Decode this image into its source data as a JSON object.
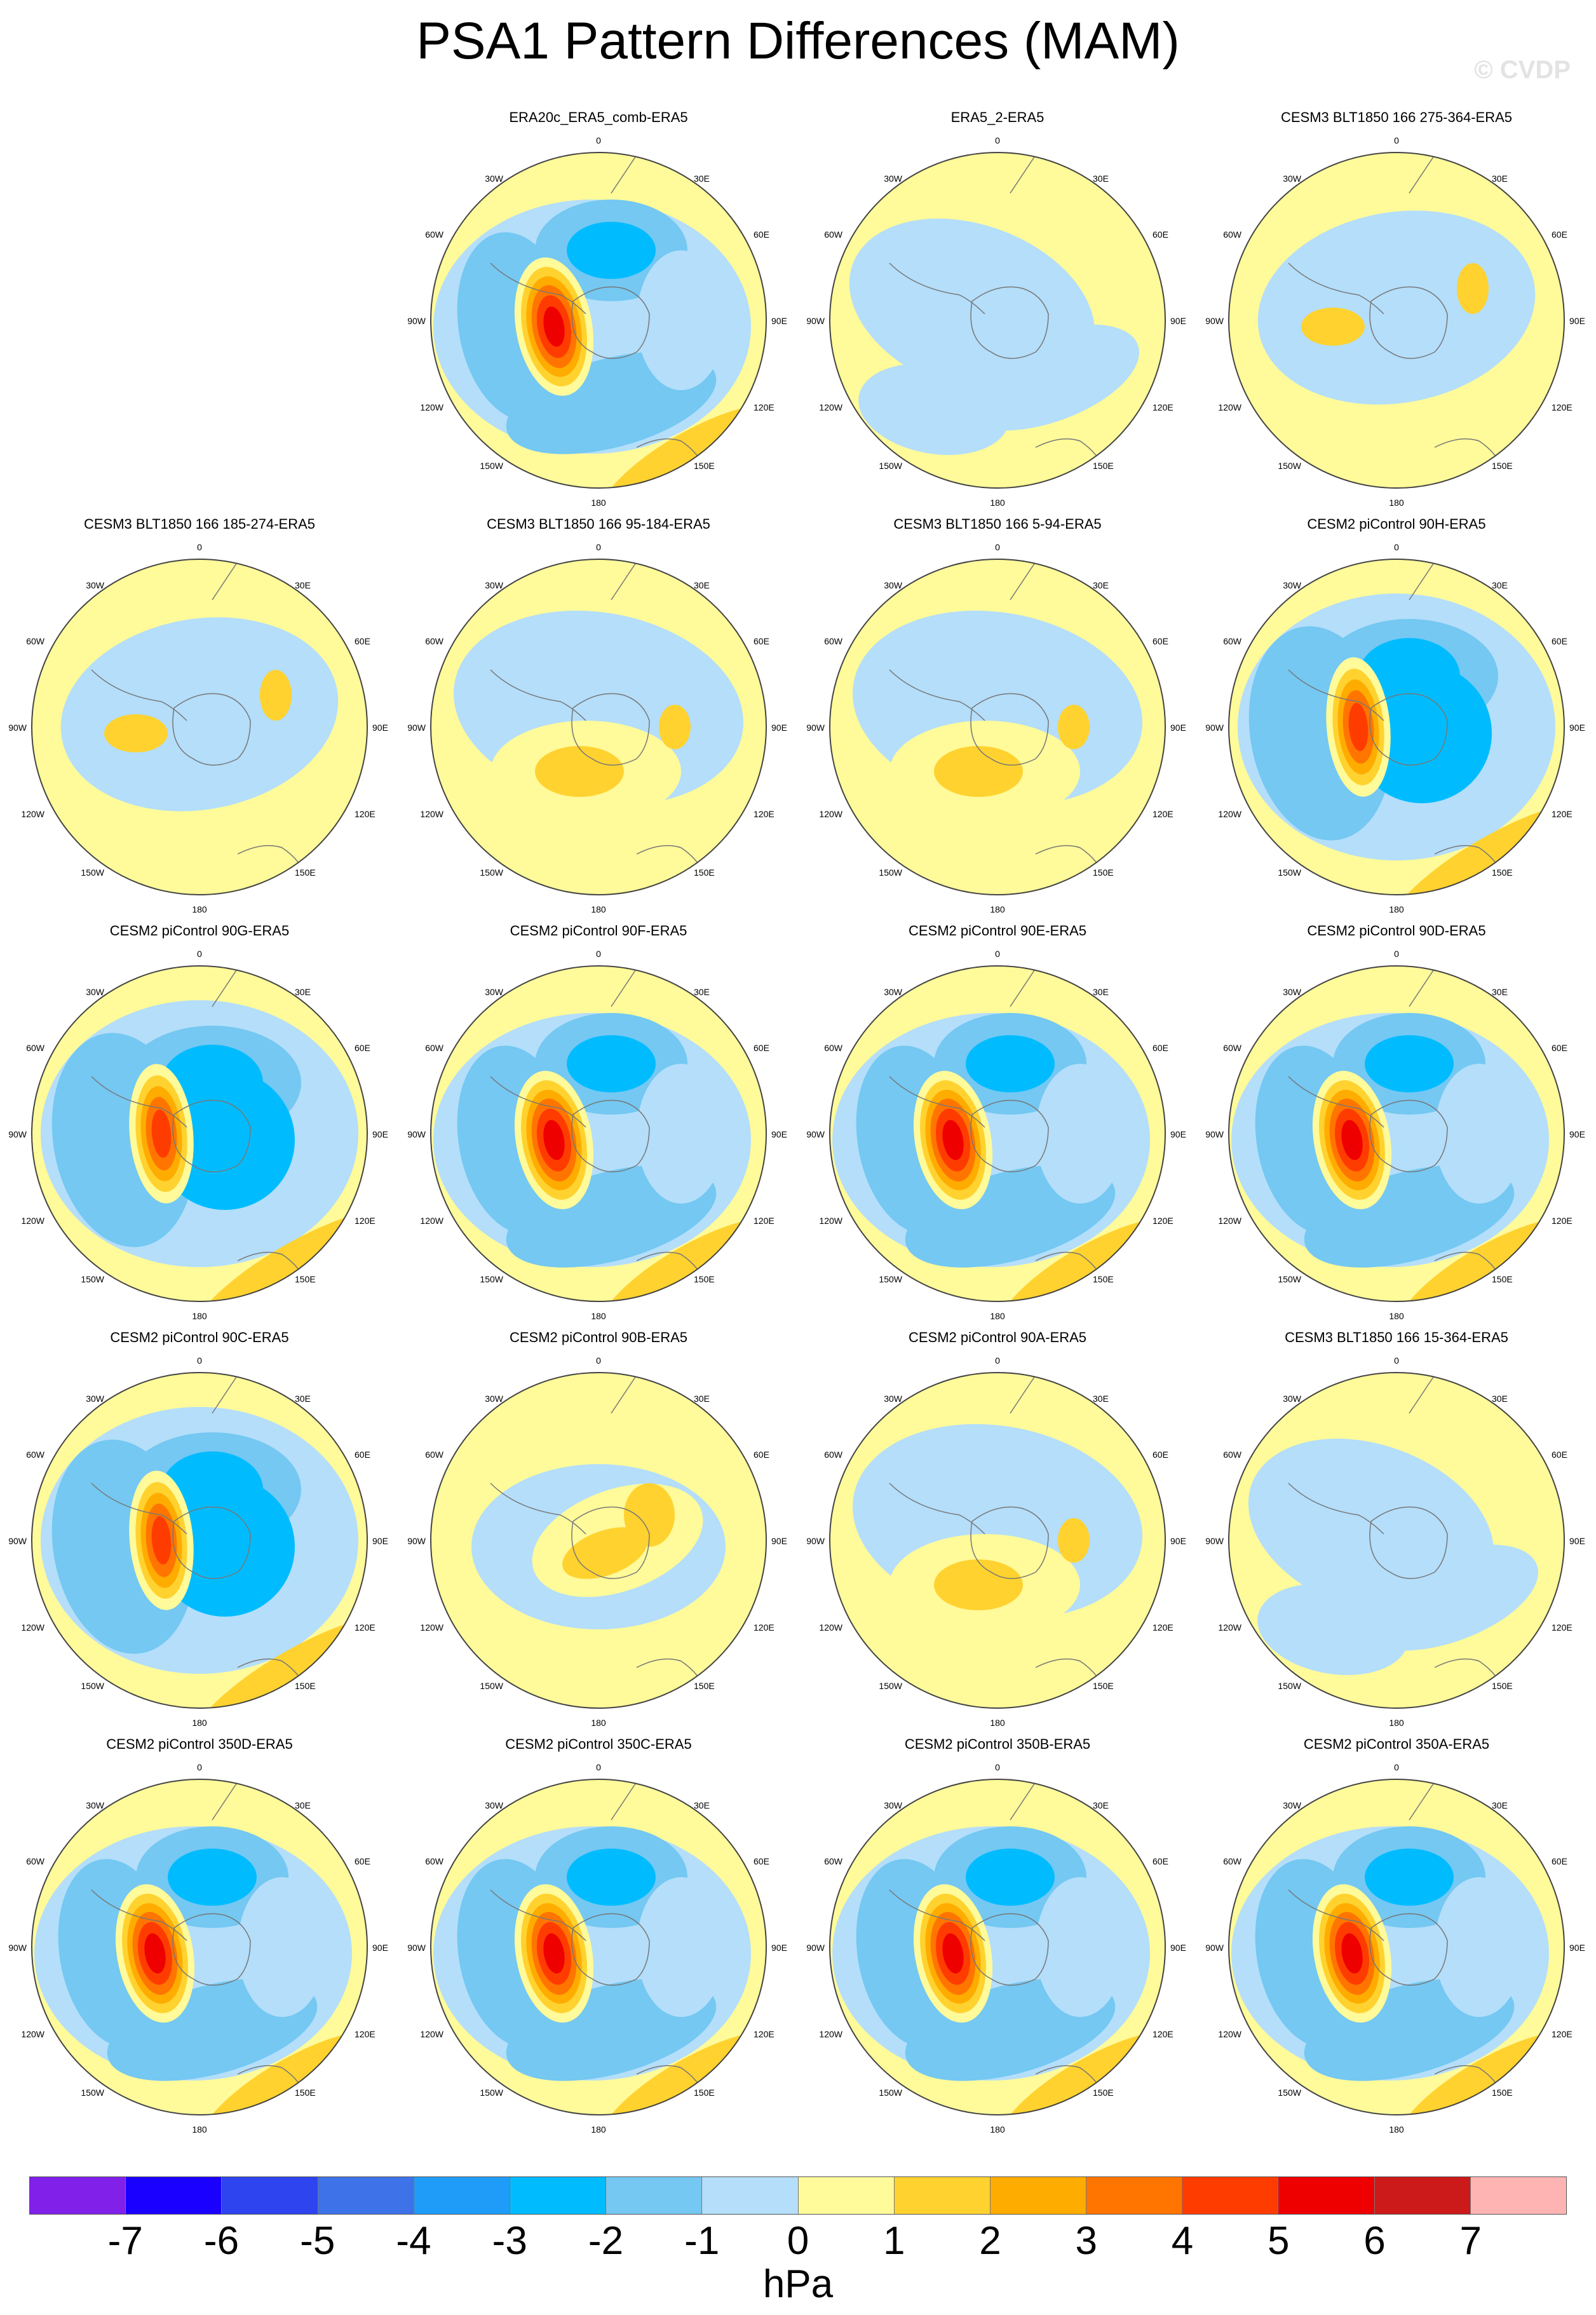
{
  "header": {
    "title": "PSA1 Pattern Differences (MAM)",
    "watermark": "© CVDP"
  },
  "map_labels": {
    "top": "0",
    "bottom": "180",
    "left_upper": "30W",
    "left_mid_upper": "60W",
    "left_mid": "90W",
    "left_mid_lower": "120W",
    "left_lower": "150W",
    "right_upper": "30E",
    "right_mid_upper": "60E",
    "right_mid": "90E",
    "right_mid_lower": "120E",
    "right_lower": "150E"
  },
  "colors": {
    "ocean_base": "#fffa9a",
    "land_outline": "#666666"
  },
  "panels": [
    {
      "title": "ERA20c_ERA5_comb-ERA5",
      "row": 0,
      "col": 1,
      "pattern": "strong_a"
    },
    {
      "title": "ERA5_2-ERA5",
      "row": 0,
      "col": 2,
      "pattern": "weak_a"
    },
    {
      "title": "CESM3 BLT1850 166 275-364-ERA5",
      "row": 0,
      "col": 3,
      "pattern": "weak_b"
    },
    {
      "title": "CESM3 BLT1850 166 185-274-ERA5",
      "row": 1,
      "col": 0,
      "pattern": "weak_b"
    },
    {
      "title": "CESM3 BLT1850 166 95-184-ERA5",
      "row": 1,
      "col": 1,
      "pattern": "weak_c"
    },
    {
      "title": "CESM3 BLT1850 166 5-94-ERA5",
      "row": 1,
      "col": 2,
      "pattern": "weak_c"
    },
    {
      "title": "CESM2 piControl 90H-ERA5",
      "row": 1,
      "col": 3,
      "pattern": "strong_b"
    },
    {
      "title": "CESM2 piControl 90G-ERA5",
      "row": 2,
      "col": 0,
      "pattern": "strong_b"
    },
    {
      "title": "CESM2 piControl 90F-ERA5",
      "row": 2,
      "col": 1,
      "pattern": "strong_a"
    },
    {
      "title": "CESM2 piControl 90E-ERA5",
      "row": 2,
      "col": 2,
      "pattern": "strong_a"
    },
    {
      "title": "CESM2 piControl 90D-ERA5",
      "row": 2,
      "col": 3,
      "pattern": "strong_a"
    },
    {
      "title": "CESM2 piControl 90C-ERA5",
      "row": 3,
      "col": 0,
      "pattern": "strong_b"
    },
    {
      "title": "CESM2 piControl 90B-ERA5",
      "row": 3,
      "col": 1,
      "pattern": "weak_d"
    },
    {
      "title": "CESM2 piControl 90A-ERA5",
      "row": 3,
      "col": 2,
      "pattern": "weak_c"
    },
    {
      "title": "CESM3 BLT1850 166 15-364-ERA5",
      "row": 3,
      "col": 3,
      "pattern": "weak_a"
    },
    {
      "title": "CESM2 piControl 350D-ERA5",
      "row": 4,
      "col": 0,
      "pattern": "strong_a"
    },
    {
      "title": "CESM2 piControl 350C-ERA5",
      "row": 4,
      "col": 1,
      "pattern": "strong_a"
    },
    {
      "title": "CESM2 piControl 350B-ERA5",
      "row": 4,
      "col": 2,
      "pattern": "strong_a"
    },
    {
      "title": "CESM2 piControl 350A-ERA5",
      "row": 4,
      "col": 3,
      "pattern": "strong_a"
    }
  ],
  "colorbar": {
    "colors": [
      "#8020e8",
      "#1a00ff",
      "#2d44ee",
      "#3d72e8",
      "#1f9cf7",
      "#00bcff",
      "#74c8f2",
      "#b4defa",
      "#fffa9a",
      "#ffd22f",
      "#ffac00",
      "#ff7500",
      "#ff3c00",
      "#ef0000",
      "#cc1a1a",
      "#ffb4b4"
    ],
    "ticks": [
      "-7",
      "-6",
      "-5",
      "-4",
      "-3",
      "-2",
      "-1",
      "0",
      "1",
      "2",
      "3",
      "4",
      "5",
      "6",
      "7"
    ],
    "units": "hPa"
  }
}
